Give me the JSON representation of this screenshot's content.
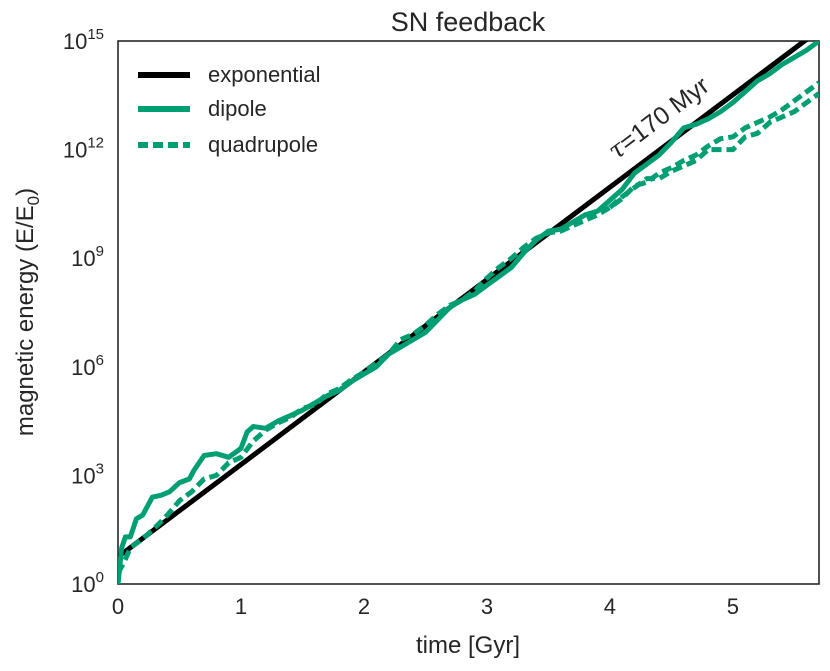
{
  "chart_data": {
    "type": "line",
    "title": "SN feedback",
    "xlabel": "time [Gyr]",
    "ylabel_main": "magnetic energy (E/E",
    "ylabel_sub": "0",
    "ylabel_end": ")",
    "xlim": [
      0,
      5.7
    ],
    "ylim_log10": [
      0,
      15
    ],
    "x_ticks": [
      {
        "value": 0,
        "label": "0"
      },
      {
        "value": 1,
        "label": "1"
      },
      {
        "value": 2,
        "label": "2"
      },
      {
        "value": 3,
        "label": "3"
      },
      {
        "value": 4,
        "label": "4"
      },
      {
        "value": 5,
        "label": "5"
      }
    ],
    "y_ticks": [
      {
        "value": 0,
        "base": "10",
        "exp": "0"
      },
      {
        "value": 3,
        "base": "10",
        "exp": "3"
      },
      {
        "value": 6,
        "base": "10",
        "exp": "6"
      },
      {
        "value": 9,
        "base": "10",
        "exp": "9"
      },
      {
        "value": 12,
        "base": "10",
        "exp": "12"
      },
      {
        "value": 15,
        "base": "10",
        "exp": "15"
      }
    ],
    "annotation": {
      "tau": "τ",
      "text": "=170 Myr",
      "x": 4.05,
      "y_log10": 11.7
    },
    "legend_position": "top-left",
    "colors": {
      "exponential": "#000000",
      "dipole": "#009e73",
      "quadrupole": "#009e73"
    },
    "series": [
      {
        "name": "exponential",
        "style": "solid",
        "x": [
          0,
          5.7
        ],
        "y_log10": [
          0.75,
          15.3
        ]
      },
      {
        "name": "dipole",
        "style": "solid",
        "x": [
          0,
          0.03,
          0.06,
          0.1,
          0.15,
          0.2,
          0.28,
          0.35,
          0.42,
          0.5,
          0.58,
          0.62,
          0.65,
          0.7,
          0.8,
          0.9,
          1.0,
          1.05,
          1.1,
          1.2,
          1.3,
          1.4,
          1.5,
          1.6,
          1.7,
          1.8,
          1.9,
          2.0,
          2.1,
          2.2,
          2.3,
          2.4,
          2.5,
          2.6,
          2.7,
          2.8,
          2.9,
          3.0,
          3.1,
          3.2,
          3.3,
          3.4,
          3.5,
          3.6,
          3.7,
          3.8,
          3.9,
          4.0,
          4.1,
          4.2,
          4.3,
          4.4,
          4.5,
          4.6,
          4.7,
          4.8,
          4.9,
          5.0,
          5.1,
          5.2,
          5.3,
          5.4,
          5.5,
          5.6,
          5.7
        ],
        "y_log10": [
          0.0,
          1.0,
          1.3,
          1.3,
          1.8,
          1.9,
          2.4,
          2.45,
          2.55,
          2.8,
          2.9,
          3.15,
          3.3,
          3.55,
          3.6,
          3.5,
          3.75,
          4.2,
          4.35,
          4.3,
          4.5,
          4.65,
          4.8,
          5.0,
          5.2,
          5.35,
          5.6,
          5.8,
          6.0,
          6.35,
          6.55,
          6.75,
          6.95,
          7.3,
          7.65,
          7.85,
          8.0,
          8.25,
          8.5,
          8.75,
          9.15,
          9.5,
          9.75,
          9.8,
          10.0,
          10.2,
          10.3,
          10.6,
          10.9,
          11.35,
          11.6,
          11.85,
          12.2,
          12.6,
          12.7,
          12.85,
          13.05,
          13.3,
          13.6,
          13.9,
          14.1,
          14.35,
          14.55,
          14.75,
          15.0
        ]
      },
      {
        "name": "quadrupole",
        "style": "dashed",
        "x": [
          0,
          0.05,
          0.1,
          0.2,
          0.3,
          0.4,
          0.5,
          0.6,
          0.7,
          0.8,
          0.9,
          1.0,
          1.1,
          1.2,
          1.3,
          1.4,
          1.5,
          1.6,
          1.7,
          1.8,
          1.9,
          2.0,
          2.1,
          2.2,
          2.3,
          2.4,
          2.5,
          2.6,
          2.7,
          2.8,
          2.9,
          3.0,
          3.1,
          3.2,
          3.3,
          3.4,
          3.5,
          3.6,
          3.7,
          3.8,
          3.9,
          4.0,
          4.1,
          4.2,
          4.3,
          4.4,
          4.5,
          4.6,
          4.7,
          4.8,
          4.9,
          5.0,
          5.1,
          5.2,
          5.3,
          5.4,
          5.5,
          5.6,
          5.7
        ],
        "y_log10": [
          0.3,
          0.6,
          1.0,
          1.25,
          1.55,
          1.9,
          2.3,
          2.55,
          2.9,
          3.0,
          3.35,
          3.5,
          3.95,
          4.25,
          4.45,
          4.6,
          4.85,
          4.95,
          5.25,
          5.4,
          5.65,
          5.85,
          6.1,
          6.35,
          6.75,
          6.9,
          7.15,
          7.45,
          7.7,
          7.85,
          8.1,
          8.45,
          8.75,
          9.0,
          9.3,
          9.55,
          9.7,
          9.75,
          9.9,
          10.05,
          10.2,
          10.4,
          10.65,
          11.0,
          11.1,
          11.35,
          11.5,
          11.7,
          11.85,
          12.1,
          12.3,
          12.35,
          12.6,
          12.75,
          12.9,
          13.1,
          13.35,
          13.6,
          13.85
        ]
      },
      {
        "name": "quadrupole_tail",
        "style": "dashed",
        "legend": false,
        "x": [
          4.0,
          4.1,
          4.2,
          4.3,
          4.4,
          4.5,
          4.6,
          4.7,
          4.8,
          4.9,
          5.0,
          5.1,
          5.2,
          5.3,
          5.4,
          5.5,
          5.6,
          5.7
        ],
        "y_log10": [
          10.4,
          10.7,
          10.95,
          11.2,
          11.2,
          11.4,
          11.55,
          11.7,
          12.0,
          12.0,
          12.0,
          12.35,
          12.45,
          12.75,
          12.9,
          13.05,
          13.3,
          13.55
        ]
      }
    ]
  }
}
